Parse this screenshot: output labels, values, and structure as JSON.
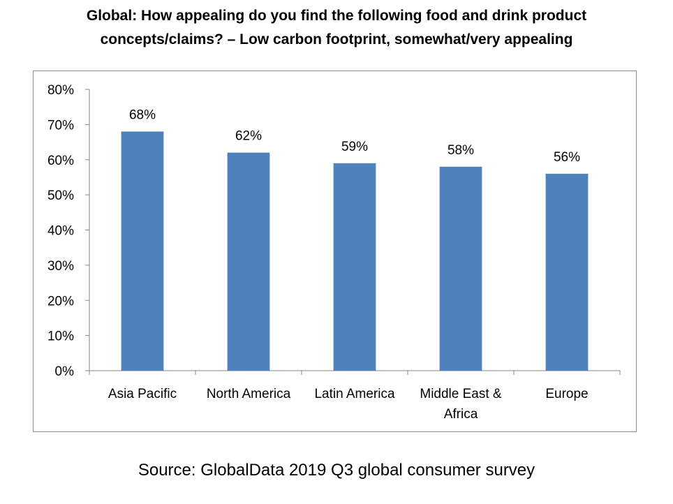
{
  "title": {
    "line1": "Global: How appealing do you find the following food and drink product",
    "line2": "concepts/claims? – Low carbon footprint, somewhat/very appealing"
  },
  "source": "Source: GlobalData 2019 Q3 global consumer survey",
  "colors": {
    "bar": "#4f81bd",
    "axis": "#868686",
    "frame": "#8c8c8c"
  },
  "chart_data": {
    "type": "bar",
    "title": "Global: How appealing do you find the following food and drink product concepts/claims? – Low carbon footprint, somewhat/very appealing",
    "categories": [
      "Asia Pacific",
      "North America",
      "Latin America",
      "Middle East & Africa",
      "Europe"
    ],
    "category_lines": [
      [
        "Asia Pacific"
      ],
      [
        "North America"
      ],
      [
        "Latin America"
      ],
      [
        "Middle East &",
        "Africa"
      ],
      [
        "Europe"
      ]
    ],
    "values": [
      68,
      62,
      59,
      58,
      56
    ],
    "data_labels": [
      "68%",
      "62%",
      "59%",
      "58%",
      "56%"
    ],
    "y_ticks": [
      0,
      10,
      20,
      30,
      40,
      50,
      60,
      70,
      80
    ],
    "y_tick_labels": [
      "0%",
      "10%",
      "20%",
      "30%",
      "40%",
      "50%",
      "60%",
      "70%",
      "80%"
    ],
    "ylim": [
      0,
      80
    ],
    "xlabel": "",
    "ylabel": "",
    "grid": false,
    "legend": "none"
  }
}
